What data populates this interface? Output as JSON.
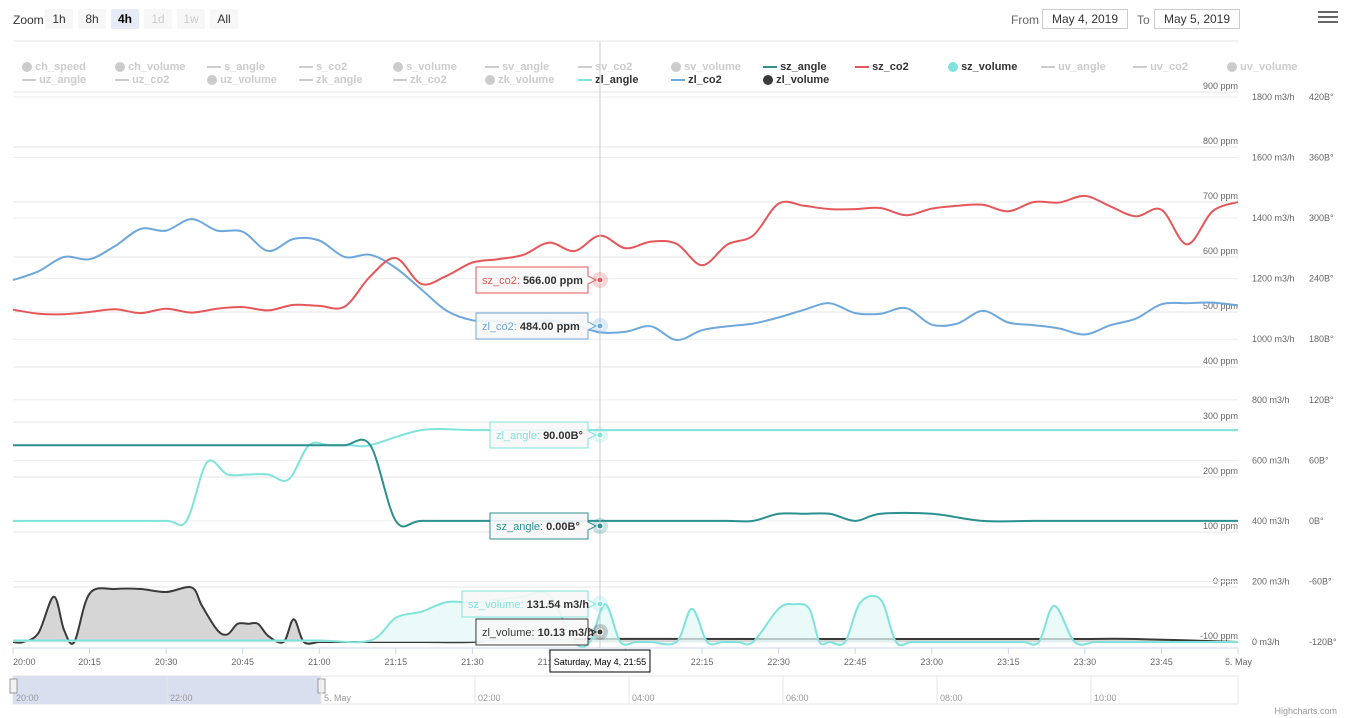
{
  "toolbar": {
    "zoom_label": "Zoom",
    "zoom_buttons": [
      {
        "label": "1h",
        "state": "normal"
      },
      {
        "label": "8h",
        "state": "normal"
      },
      {
        "label": "4h",
        "state": "active"
      },
      {
        "label": "1d",
        "state": "disabled"
      },
      {
        "label": "1w",
        "state": "disabled"
      },
      {
        "label": "All",
        "state": "normal"
      }
    ],
    "from_label": "From",
    "from_value": "May 4, 2019",
    "to_label": "To",
    "to_value": "May 5, 2019"
  },
  "legend": {
    "rows": [
      [
        {
          "name": "ch_speed",
          "symbol": "circle",
          "color": "#cccccc",
          "visible": false
        },
        {
          "name": "ch_volume",
          "symbol": "circle",
          "color": "#cccccc",
          "visible": false
        },
        {
          "name": "s_angle",
          "symbol": "line",
          "color": "#cccccc",
          "visible": false
        },
        {
          "name": "s_co2",
          "symbol": "line",
          "color": "#cccccc",
          "visible": false
        },
        {
          "name": "s_volume",
          "symbol": "circle",
          "color": "#cccccc",
          "visible": false
        },
        {
          "name": "sv_angle",
          "symbol": "line",
          "color": "#cccccc",
          "visible": false
        },
        {
          "name": "sv_co2",
          "symbol": "line",
          "color": "#cccccc",
          "visible": false
        },
        {
          "name": "sv_volume",
          "symbol": "circle",
          "color": "#cccccc",
          "visible": false
        },
        {
          "name": "sz_angle",
          "symbol": "line",
          "color": "#2b908f",
          "visible": true
        },
        {
          "name": "sz_co2",
          "symbol": "line",
          "color": "#e4575a",
          "visible": true
        },
        {
          "name": "sz_volume",
          "symbol": "circle",
          "color": "#7fe3dc",
          "visible": true
        },
        {
          "name": "uv_angle",
          "symbol": "line",
          "color": "#cccccc",
          "visible": false
        },
        {
          "name": "uv_co2",
          "symbol": "line",
          "color": "#cccccc",
          "visible": false
        },
        {
          "name": "uv_volume",
          "symbol": "circle",
          "color": "#cccccc",
          "visible": false
        }
      ],
      [
        {
          "name": "uz_angle",
          "symbol": "line",
          "color": "#cccccc",
          "visible": false
        },
        {
          "name": "uz_co2",
          "symbol": "line",
          "color": "#cccccc",
          "visible": false
        },
        {
          "name": "uz_volume",
          "symbol": "circle",
          "color": "#cccccc",
          "visible": false
        },
        {
          "name": "zk_angle",
          "symbol": "line",
          "color": "#cccccc",
          "visible": false
        },
        {
          "name": "zk_co2",
          "symbol": "line",
          "color": "#cccccc",
          "visible": false
        },
        {
          "name": "zk_volume",
          "symbol": "circle",
          "color": "#cccccc",
          "visible": false
        },
        {
          "name": "zl_angle",
          "symbol": "line",
          "color": "#7fe3dc",
          "visible": true
        },
        {
          "name": "zl_co2",
          "symbol": "line",
          "color": "#6ea8db",
          "visible": true
        },
        {
          "name": "zl_volume",
          "symbol": "circle",
          "color": "#3a3a3a",
          "visible": true
        }
      ]
    ]
  },
  "chart_data": {
    "type": "line",
    "x_ticks": [
      "20:00",
      "20:15",
      "20:30",
      "20:45",
      "21:00",
      "21:15",
      "21:30",
      "21:45",
      "22:00",
      "22:15",
      "22:30",
      "22:45",
      "23:00",
      "23:15",
      "23:30",
      "23:45",
      "5. May"
    ],
    "axes": {
      "co2": {
        "unit": "ppm",
        "min": -100,
        "max": 900,
        "ticks": [
          "900 ppm",
          "800 ppm",
          "700 ppm",
          "600 ppm",
          "500 ppm",
          "400 ppm",
          "300 ppm",
          "200 ppm",
          "100 ppm",
          "0 ppm",
          "-100 ppm"
        ]
      },
      "volume": {
        "unit": "m3/h",
        "min": 0,
        "max": 1800,
        "ticks": [
          "1800 m3/h",
          "1600 m3/h",
          "1400 m3/h",
          "1200 m3/h",
          "1000 m3/h",
          "800 m3/h",
          "600 m3/h",
          "400 m3/h",
          "200 m3/h",
          "0 m3/h"
        ]
      },
      "angle": {
        "unit": "B°",
        "min": -120,
        "max": 420,
        "ticks": [
          "420B°",
          "360B°",
          "300B°",
          "240B°",
          "180B°",
          "120B°",
          "60B°",
          "0B°",
          "-60B°",
          "-120B°"
        ]
      }
    },
    "series": [
      {
        "name": "zl_co2",
        "axis": "co2",
        "color": "#6ea8db",
        "x": [
          0,
          5,
          10,
          15,
          20,
          25,
          30,
          35,
          40,
          45,
          50,
          55,
          60,
          65,
          70,
          75,
          80,
          85,
          90,
          95,
          100,
          105,
          110,
          115,
          120,
          125,
          130,
          135,
          140,
          145,
          150,
          155,
          160,
          165,
          170,
          175,
          180,
          185,
          190,
          195,
          200,
          205,
          210,
          215,
          220,
          225,
          230,
          235,
          240
        ],
        "y": [
          558,
          574,
          600,
          596,
          620,
          651,
          648,
          669,
          648,
          646,
          611,
          633,
          630,
          600,
          604,
          580,
          541,
          502,
          485,
          483,
          478,
          484,
          476,
          463,
          464,
          474,
          449,
          467,
          474,
          479,
          490,
          504,
          516,
          498,
          497,
          507,
          477,
          479,
          502,
          481,
          476,
          470,
          459,
          476,
          488,
          514,
          516,
          517,
          512
        ]
      },
      {
        "name": "sz_co2",
        "axis": "co2",
        "color": "#e4575a",
        "x": [
          0,
          5,
          10,
          15,
          20,
          25,
          30,
          35,
          40,
          45,
          50,
          55,
          60,
          65,
          70,
          75,
          80,
          85,
          90,
          95,
          100,
          105,
          110,
          115,
          120,
          125,
          130,
          135,
          140,
          145,
          150,
          155,
          160,
          165,
          170,
          175,
          180,
          185,
          190,
          195,
          200,
          205,
          210,
          215,
          220,
          225,
          230,
          235,
          240
        ],
        "y": [
          504,
          497,
          496,
          500,
          505,
          498,
          506,
          499,
          506,
          509,
          503,
          513,
          511,
          510,
          565,
          598,
          551,
          566,
          590,
          596,
          604,
          626,
          611,
          639,
          616,
          628,
          624,
          585,
          623,
          639,
          697,
          693,
          687,
          687,
          689,
          676,
          688,
          693,
          695,
          683,
          700,
          699,
          711,
          692,
          674,
          686,
          623,
          683,
          700
        ]
      },
      {
        "name": "zl_angle",
        "axis": "angle",
        "color": "#7fe3dc",
        "x": [
          0,
          10,
          20,
          30,
          34,
          38,
          42,
          46,
          50,
          54,
          58,
          62,
          66,
          70,
          80,
          90,
          100,
          120,
          140,
          160,
          180,
          200,
          220,
          240
        ],
        "y": [
          0,
          0,
          0,
          0,
          0,
          58,
          46,
          46,
          46,
          41,
          75,
          75,
          75,
          75,
          90,
          90,
          90,
          90,
          90,
          90,
          90,
          90,
          90,
          90
        ]
      },
      {
        "name": "sz_angle",
        "axis": "angle",
        "color": "#2b908f",
        "x": [
          0,
          10,
          20,
          30,
          40,
          50,
          60,
          65,
          70,
          75,
          80,
          90,
          100,
          110,
          120,
          130,
          135,
          140,
          145,
          150,
          155,
          160,
          165,
          170,
          180,
          190,
          200,
          210,
          220,
          230,
          240
        ],
        "y": [
          75,
          75,
          75,
          75,
          75,
          75,
          75,
          75,
          75,
          0,
          0,
          0,
          0,
          0,
          0,
          0,
          0,
          0,
          0,
          7,
          7,
          7,
          0,
          7,
          7,
          0,
          0,
          0,
          0,
          0,
          0
        ]
      },
      {
        "name": "zl_volume",
        "axis": "volume",
        "color": "#3a3a3a",
        "fill": "#c8c8c8",
        "x": [
          0,
          2,
          5,
          8,
          10,
          12,
          15,
          20,
          25,
          30,
          35,
          37,
          40,
          42,
          44,
          46,
          48,
          50,
          53,
          55,
          57,
          60,
          62,
          64,
          66,
          70,
          80,
          90,
          100,
          150,
          175,
          200,
          210,
          220,
          240
        ],
        "y": [
          0,
          0,
          30,
          150,
          40,
          0,
          160,
          175,
          175,
          165,
          180,
          120,
          40,
          25,
          60,
          60,
          60,
          20,
          0,
          75,
          0,
          0,
          0,
          0,
          0,
          0,
          0,
          0,
          10,
          10,
          10,
          10,
          10,
          10,
          0
        ]
      },
      {
        "name": "sz_volume",
        "axis": "volume",
        "color": "#7fe3dc",
        "fill": "#e3f8f5",
        "x": [
          0,
          10,
          20,
          30,
          40,
          50,
          60,
          70,
          75,
          80,
          85,
          90,
          95,
          100,
          105,
          110,
          113,
          116,
          119,
          122,
          125,
          130,
          133,
          136,
          139,
          142,
          145,
          150,
          153,
          156,
          158,
          160,
          163,
          166,
          170,
          173,
          176,
          179,
          182,
          185,
          190,
          195,
          198,
          201,
          204,
          208,
          212,
          216,
          220,
          240
        ],
        "y": [
          5,
          5,
          5,
          5,
          5,
          5,
          5,
          5,
          80,
          100,
          132,
          130,
          140,
          150,
          155,
          0,
          0,
          125,
          0,
          0,
          0,
          0,
          110,
          0,
          0,
          0,
          0,
          110,
          125,
          110,
          0,
          0,
          0,
          130,
          140,
          0,
          0,
          0,
          0,
          0,
          0,
          0,
          0,
          0,
          120,
          0,
          0,
          0,
          0,
          0
        ]
      }
    ],
    "tooltips": [
      {
        "series": "sz_co2",
        "label": "sz_co2",
        "value": "566.00 ppm",
        "color": "#e4575a"
      },
      {
        "series": "zl_co2",
        "label": "zl_co2",
        "value": "484.00 ppm",
        "color": "#6ea8db"
      },
      {
        "series": "zl_angle",
        "label": "zl_angle",
        "value": "90.00B°",
        "color": "#7fe3dc"
      },
      {
        "series": "sz_angle",
        "label": "sz_angle",
        "value": "0.00B°",
        "color": "#2b908f"
      },
      {
        "series": "sz_volume",
        "label": "sz_volume",
        "value": "131.54 m3/h",
        "color": "#7fe3dc"
      },
      {
        "series": "zl_volume",
        "label": "zl_volume",
        "value": "10.13 m3/h",
        "color": "#3a3a3a"
      }
    ],
    "crosshair_label": "Saturday, May 4, 21:55",
    "navigator": {
      "ticks": [
        "20:00",
        "22:00",
        "5. May",
        "02:00",
        "04:00",
        "06:00",
        "08:00",
        "10:00"
      ],
      "selection_color": "#d2d9ec"
    },
    "grid": true,
    "legend_position": "top"
  },
  "credits": "Highcharts.com"
}
